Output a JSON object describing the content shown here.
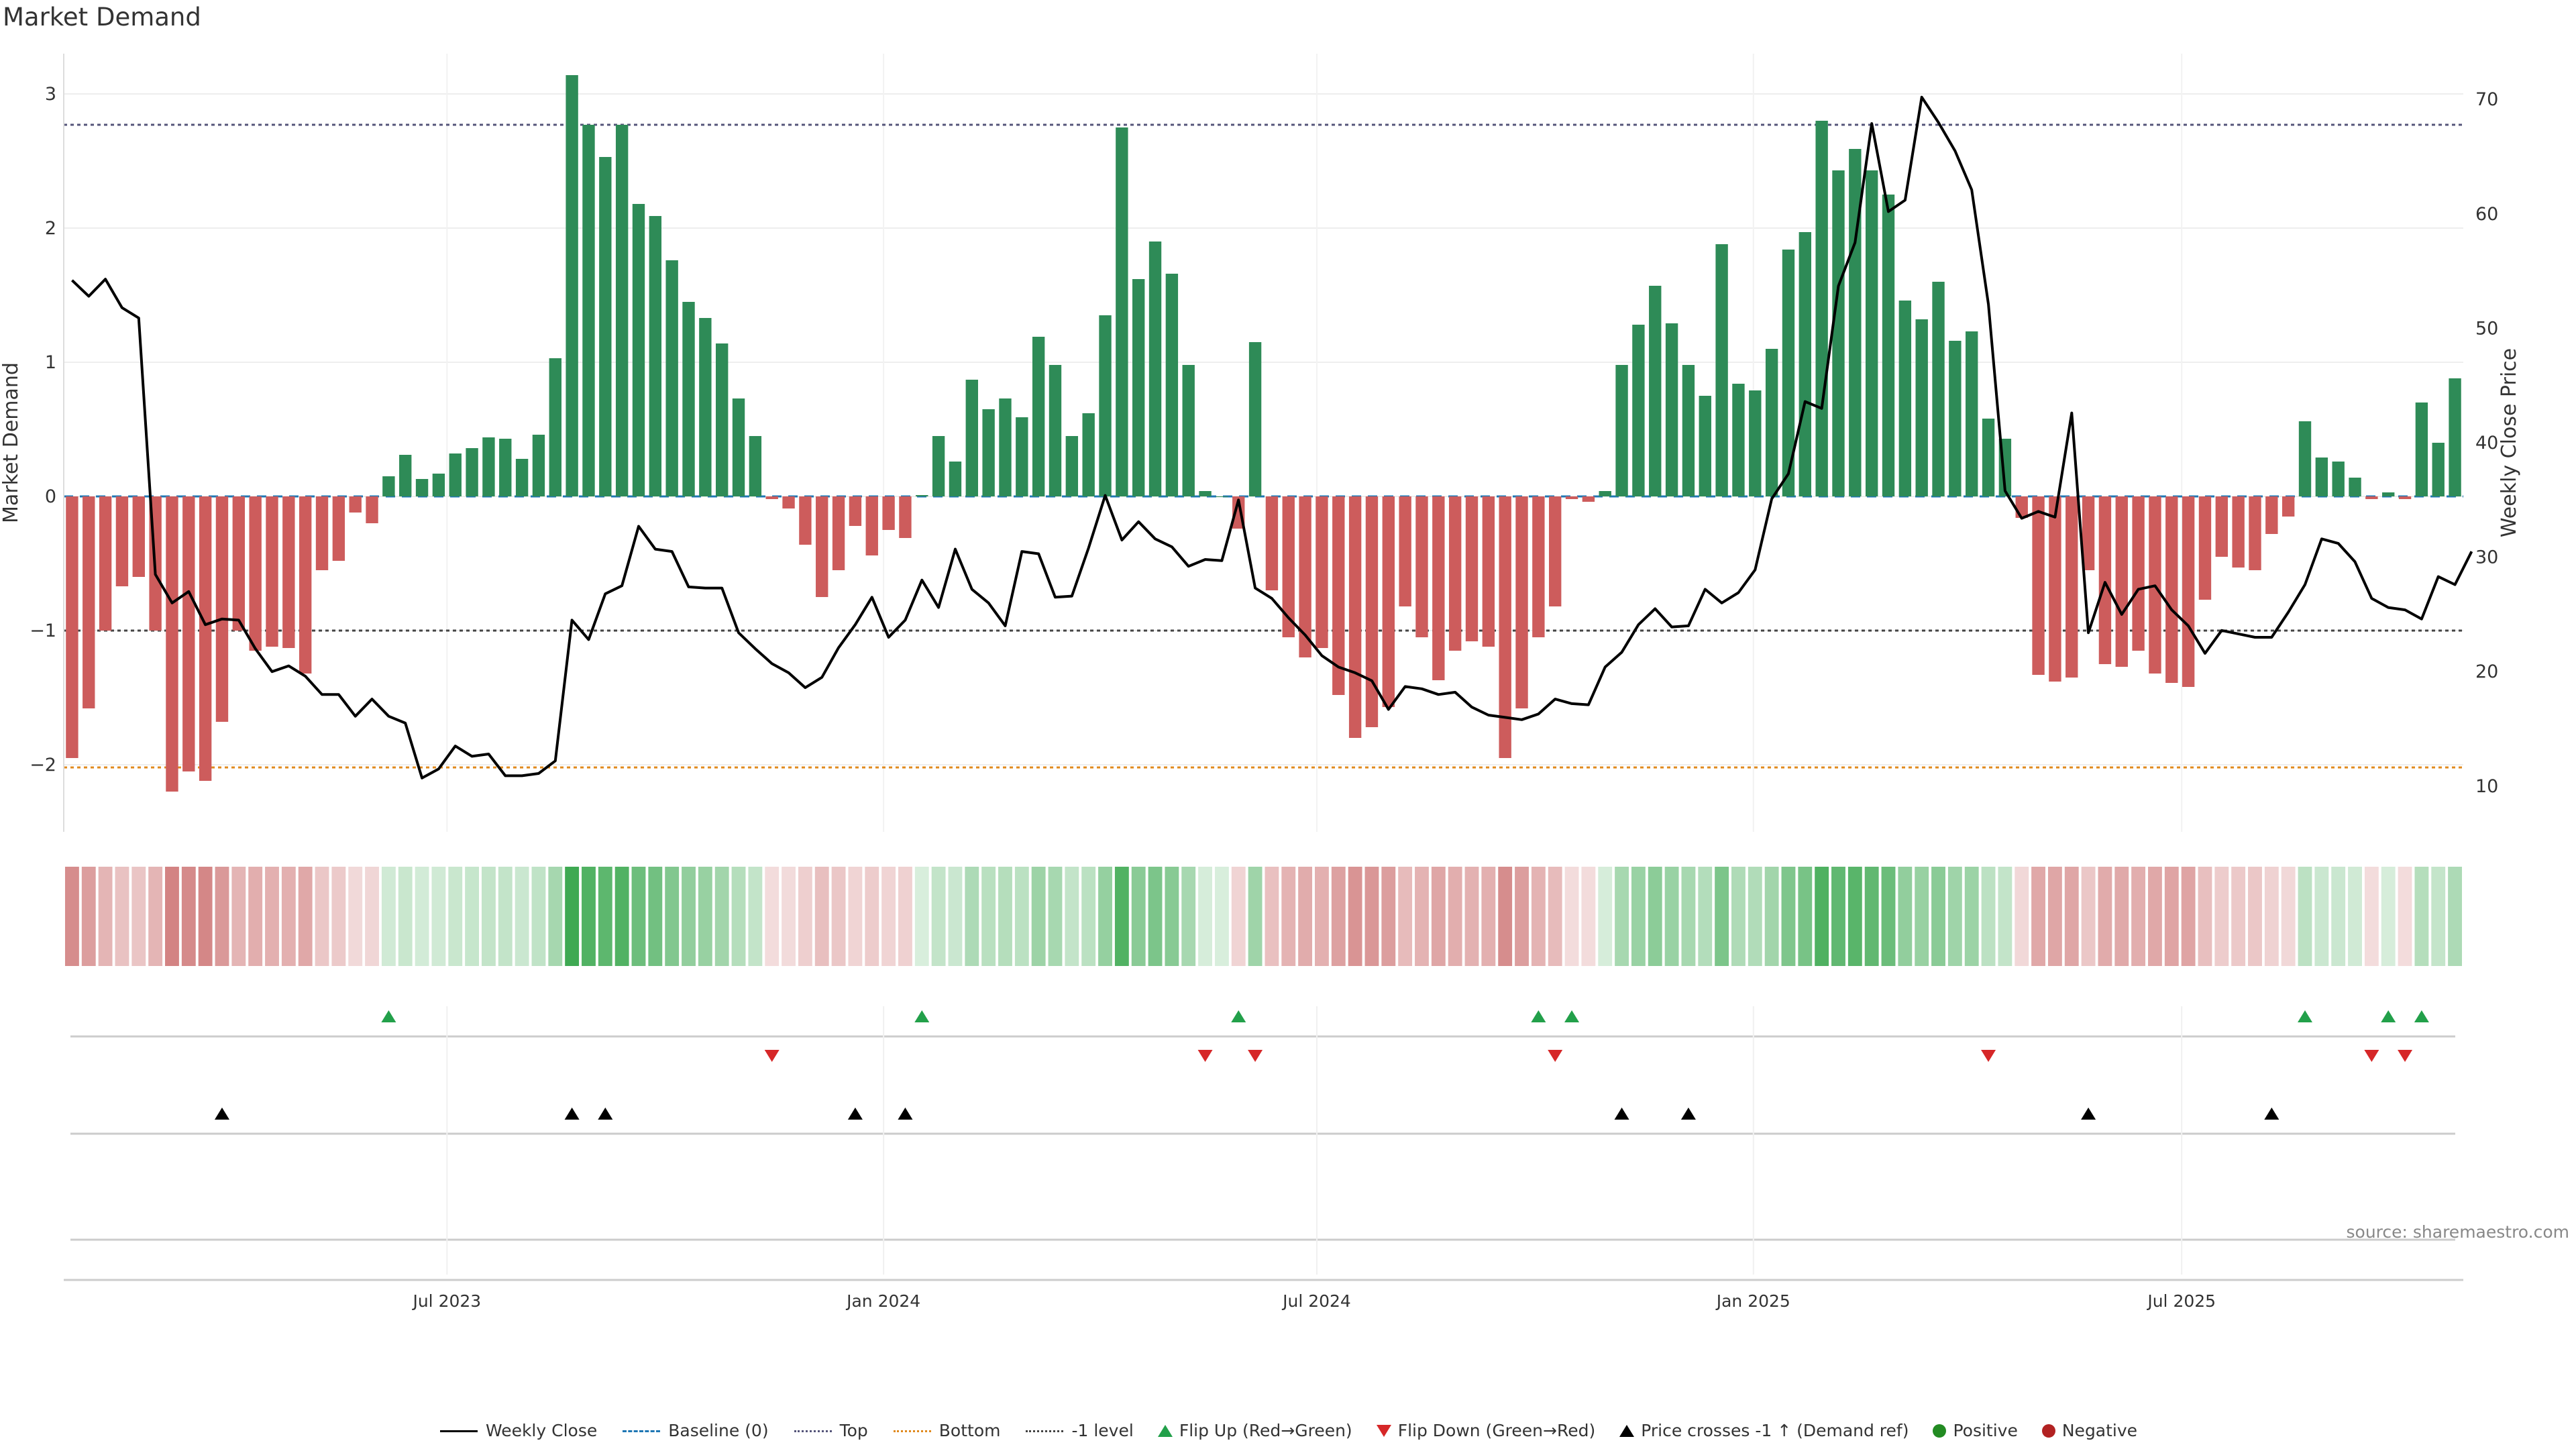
{
  "title": "Market Demand",
  "source": "source: sharemaestro.com",
  "legend": {
    "weekly_close": "Weekly Close",
    "baseline": "Baseline (0)",
    "top": "Top",
    "bottom": "Bottom",
    "minus1": "-1 level",
    "flip_up": "Flip Up (Red→Green)",
    "flip_down": "Flip Down (Green→Red)",
    "price_cross": "Price crosses -1 ↑ (Demand ref)",
    "positive": "Positive",
    "negative": "Negative"
  },
  "colors": {
    "pos": "#2e8b57",
    "neg": "#cd5c5c",
    "price": "#000000",
    "top": "#55557a",
    "bottom": "#e08a1e",
    "minus1": "#444444",
    "flip_up": "#22a04a",
    "flip_down": "#d62728",
    "cross": "#000000"
  },
  "chart_data": {
    "type": "bar",
    "title": "Market Demand",
    "ylabel": "Market Demand",
    "y2label": "Weekly Close Price",
    "ylim": [
      -2.5,
      3.3
    ],
    "y2lim": [
      6,
      74
    ],
    "yticks": [
      -2,
      -1,
      0,
      1,
      2,
      3
    ],
    "y2ticks": [
      10,
      20,
      30,
      40,
      50,
      60,
      70
    ],
    "levels": {
      "top": 2.77,
      "bottom": -2.02,
      "minus1": -1.0
    },
    "x_start": "2023-01-13",
    "x_step_weeks": 1,
    "date_ticks": [
      {
        "label": "Jul 2023",
        "week": 22.5
      },
      {
        "label": "Jan 2024",
        "week": 48.7
      },
      {
        "label": "Jul 2024",
        "week": 74.7
      },
      {
        "label": "Jan 2025",
        "week": 100.9
      },
      {
        "label": "Jul 2025",
        "week": 126.6
      }
    ],
    "series": [
      {
        "name": "Market Demand",
        "values": [
          -1.95,
          -1.58,
          -1.0,
          -0.67,
          -0.6,
          -1.0,
          -2.2,
          -2.05,
          -2.12,
          -1.68,
          -1.0,
          -1.15,
          -1.12,
          -1.13,
          -1.32,
          -0.55,
          -0.48,
          -0.12,
          -0.2,
          0.15,
          0.31,
          0.13,
          0.17,
          0.32,
          0.36,
          0.44,
          0.43,
          0.28,
          0.46,
          1.03,
          3.14,
          2.77,
          2.53,
          2.77,
          2.18,
          2.09,
          1.76,
          1.45,
          1.33,
          1.14,
          0.73,
          0.45,
          -0.02,
          -0.09,
          -0.36,
          -0.75,
          -0.55,
          -0.22,
          -0.44,
          -0.25,
          -0.31,
          0.01,
          0.45,
          0.26,
          0.87,
          0.65,
          0.73,
          0.59,
          1.19,
          0.98,
          0.45,
          0.62,
          1.35,
          2.75,
          1.62,
          1.9,
          1.66,
          0.98,
          0.04,
          0.0,
          -0.24,
          1.15,
          -0.7,
          -1.05,
          -1.2,
          -1.13,
          -1.48,
          -1.8,
          -1.72,
          -1.57,
          -0.82,
          -1.05,
          -1.37,
          -1.15,
          -1.08,
          -1.12,
          -1.95,
          -1.58,
          -1.05,
          -0.82,
          -0.02,
          -0.04,
          0.04,
          0.98,
          1.28,
          1.57,
          1.29,
          0.98,
          0.75,
          1.88,
          0.84,
          0.79,
          1.1,
          1.84,
          1.97,
          2.8,
          2.43,
          2.59,
          2.43,
          2.25,
          1.46,
          1.32,
          1.6,
          1.16,
          1.23,
          0.58,
          0.43,
          -0.16,
          -1.33,
          -1.38,
          -1.35,
          -0.55,
          -1.25,
          -1.27,
          -1.15,
          -1.32,
          -1.39,
          -1.42,
          -0.77,
          -0.45,
          -0.53,
          -0.55,
          -0.28,
          -0.15,
          0.56,
          0.29,
          0.26,
          0.14,
          -0.02,
          0.03,
          -0.02,
          0.7,
          0.4,
          0.88
        ]
      },
      {
        "name": "Weekly Close",
        "values": [
          54.2,
          52.8,
          54.3,
          51.8,
          50.9,
          28.5,
          26.0,
          27.0,
          24.1,
          24.6,
          24.5,
          22.0,
          20.0,
          20.5,
          19.6,
          18.0,
          18.0,
          16.1,
          17.6,
          16.1,
          15.5,
          10.7,
          11.5,
          13.5,
          12.6,
          12.8,
          10.9,
          10.9,
          11.1,
          12.2,
          24.5,
          22.8,
          26.8,
          27.5,
          32.7,
          30.7,
          30.5,
          27.4,
          27.3,
          27.3,
          23.4,
          22.0,
          20.7,
          19.9,
          18.6,
          19.5,
          22.1,
          24.1,
          26.5,
          23.0,
          24.5,
          28.0,
          25.6,
          30.7,
          27.2,
          26.0,
          24.0,
          30.5,
          30.3,
          26.5,
          26.6,
          30.8,
          35.4,
          31.5,
          33.1,
          31.6,
          30.9,
          29.2,
          29.8,
          29.7,
          35.0,
          27.3,
          26.4,
          24.7,
          23.2,
          21.4,
          20.4,
          19.9,
          19.2,
          16.7,
          18.7,
          18.5,
          18.0,
          18.2,
          16.9,
          16.2,
          16.0,
          15.8,
          16.3,
          17.6,
          17.2,
          17.1,
          20.4,
          21.7,
          24.1,
          25.5,
          23.9,
          24.0,
          27.2,
          26.0,
          26.9,
          28.9,
          35.1,
          37.3,
          43.6,
          43.0,
          53.7,
          57.5,
          67.9,
          60.2,
          61.2,
          70.2,
          68.0,
          65.5,
          62.1,
          52.1,
          35.8,
          33.4,
          34.0,
          33.5,
          42.6,
          23.4,
          27.8,
          25.0,
          27.2,
          27.5,
          25.4,
          24.0,
          21.6,
          23.6,
          23.3,
          23.0,
          23.0,
          25.2,
          27.6,
          31.6,
          31.2,
          29.6,
          26.4,
          25.6,
          25.4,
          24.6,
          28.3,
          27.6,
          30.5
        ]
      }
    ],
    "flip_up_weeks": [
      19,
      51,
      70,
      88,
      90,
      134,
      139,
      141
    ],
    "flip_down_weeks": [
      42,
      68,
      71,
      89,
      115,
      138,
      140
    ],
    "cross_weeks": [
      9,
      30,
      32,
      47,
      50,
      93,
      97,
      121,
      132
    ],
    "x_range_weeks": [
      -0.5,
      143.5
    ]
  }
}
